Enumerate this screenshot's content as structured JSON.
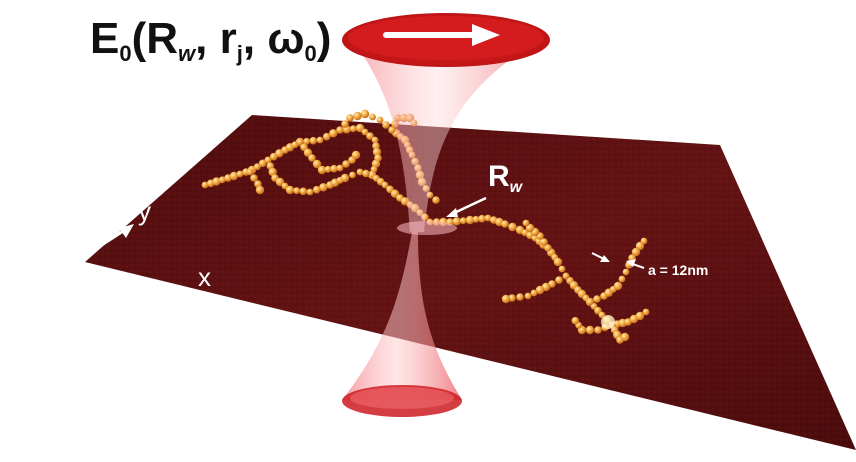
{
  "title": {
    "main": "E",
    "sub0": "0",
    "open": "(R",
    "subw": "w",
    "mid": ", r",
    "subj": "j",
    "mid2": ", ω",
    "sub00": "0",
    "close": ")"
  },
  "labels": {
    "rw_main": "R",
    "rw_sub": "w",
    "axis_y": "y",
    "axis_x": "x",
    "spacing": "a = 12nm"
  },
  "colors": {
    "substrate": "#5a0f10",
    "beam": "#d81e1e",
    "particles": "#f2a13a",
    "arrow": "#ffffff"
  },
  "icons": [
    "beam-direction-arrow-icon",
    "axis-arrows-icon",
    "pointer-arrow-icon"
  ]
}
